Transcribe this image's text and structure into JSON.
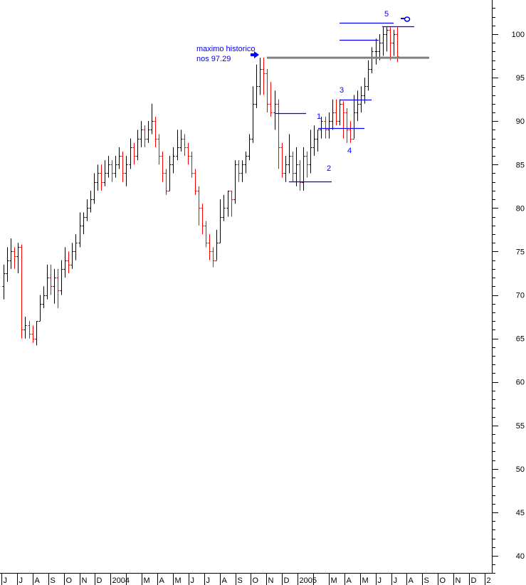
{
  "chart_data": {
    "type": "ohlc-bar",
    "title": "",
    "xlabel": "",
    "ylabel": "",
    "ylim": [
      38,
      104
    ],
    "grid": false,
    "colors": {
      "up": "#000000",
      "down": "#ff0000",
      "annotation": "#0000ff",
      "reference": "#808080",
      "axis": "#000000"
    },
    "y_ticks": [
      100,
      95,
      90,
      85,
      80,
      75,
      70,
      65,
      60,
      55,
      50,
      45,
      40
    ],
    "y_tick_labels": [
      "100",
      "95",
      "90",
      "85",
      "80",
      "75",
      "70",
      "65",
      "60",
      "55",
      "50",
      "45",
      "40"
    ],
    "x_tick_labels": [
      "J",
      "J",
      "A",
      "S",
      "O",
      "N",
      "D",
      "2004",
      "",
      "M",
      "A",
      "M",
      "J",
      "J",
      "A",
      "S",
      "O",
      "N",
      "D",
      "2005",
      "",
      "M",
      "A",
      "M",
      "J",
      "J",
      "A",
      "S",
      "O",
      "N",
      "D",
      "2"
    ],
    "bars_format": [
      "open",
      "high",
      "low",
      "close"
    ],
    "bars": [
      [
        71,
        73.5,
        69.5,
        72.5
      ],
      [
        72.5,
        75.5,
        71.5,
        74
      ],
      [
        74,
        76.5,
        73,
        75
      ],
      [
        75,
        75.5,
        73,
        74.5
      ],
      [
        74.5,
        76,
        72.5,
        75.5
      ],
      [
        75.5,
        75.8,
        65,
        66
      ],
      [
        66,
        67.5,
        65,
        66.5
      ],
      [
        66.5,
        67,
        65,
        65.5
      ],
      [
        65.5,
        66.5,
        64.5,
        65
      ],
      [
        65,
        67,
        64.2,
        67
      ],
      [
        67,
        70,
        67,
        69
      ],
      [
        69,
        71,
        68.5,
        70
      ],
      [
        70,
        73.5,
        69.5,
        72
      ],
      [
        72,
        73.5,
        70,
        71
      ],
      [
        71,
        73,
        69,
        72
      ],
      [
        72,
        73,
        68.5,
        70.5
      ],
      [
        70.5,
        74,
        70,
        73
      ],
      [
        73,
        75.5,
        72,
        74
      ],
      [
        74,
        75,
        72.5,
        73.5
      ],
      [
        73.5,
        76,
        73,
        75
      ],
      [
        75,
        77,
        74,
        76
      ],
      [
        76,
        79.5,
        75.5,
        78
      ],
      [
        78,
        79.5,
        77,
        79
      ],
      [
        79,
        81,
        78.5,
        80
      ],
      [
        80,
        82,
        79.5,
        81
      ],
      [
        81,
        84,
        80.5,
        83
      ],
      [
        83,
        85,
        82,
        84
      ],
      [
        84,
        85,
        82,
        83
      ],
      [
        83,
        85.5,
        82.5,
        84
      ],
      [
        84,
        86,
        83.5,
        85
      ],
      [
        85,
        85.5,
        83,
        84
      ],
      [
        84,
        86,
        83.5,
        85
      ],
      [
        85,
        87,
        84.5,
        86
      ],
      [
        86,
        86.5,
        83,
        84
      ],
      [
        84,
        86,
        82.5,
        85
      ],
      [
        85,
        88,
        84.5,
        87
      ],
      [
        87,
        87.5,
        85,
        86
      ],
      [
        86,
        89,
        85.5,
        88
      ],
      [
        88,
        90,
        87,
        89
      ],
      [
        89,
        89.5,
        87,
        88
      ],
      [
        88,
        90,
        87.5,
        89
      ],
      [
        89,
        92,
        88.5,
        90
      ],
      [
        90,
        90.5,
        87,
        88
      ],
      [
        88,
        88.5,
        85,
        86
      ],
      [
        86,
        86.5,
        83,
        84
      ],
      [
        84,
        84.5,
        81.5,
        82
      ],
      [
        82,
        86,
        82,
        85
      ],
      [
        85,
        87,
        84,
        86
      ],
      [
        86,
        89,
        85.5,
        87
      ],
      [
        87,
        89,
        86.5,
        88
      ],
      [
        88,
        88.5,
        86,
        87
      ],
      [
        87,
        87.5,
        85,
        86
      ],
      [
        86,
        86.5,
        83.5,
        84
      ],
      [
        84,
        84.5,
        81.5,
        82
      ],
      [
        82,
        82.5,
        78,
        80
      ],
      [
        80,
        80.5,
        77,
        78
      ],
      [
        78,
        78.5,
        75.5,
        76
      ],
      [
        76,
        77,
        74,
        75
      ],
      [
        75,
        75.5,
        73.2,
        74
      ],
      [
        74,
        77.5,
        74,
        76
      ],
      [
        76,
        81,
        76,
        79
      ],
      [
        79,
        81.5,
        78.5,
        80
      ],
      [
        80,
        82,
        79,
        82
      ],
      [
        82,
        82,
        79,
        81
      ],
      [
        81,
        85.5,
        80.5,
        85
      ],
      [
        85,
        85.5,
        83,
        84
      ],
      [
        84,
        85.5,
        83,
        85
      ],
      [
        85,
        86.5,
        84,
        86
      ],
      [
        86,
        88.5,
        85.5,
        88
      ],
      [
        88,
        94,
        87.5,
        92
      ],
      [
        92,
        96.5,
        91.5,
        94
      ],
      [
        94,
        97.3,
        93,
        96
      ],
      [
        96,
        97.3,
        93,
        95.5
      ],
      [
        95.5,
        96,
        91,
        92
      ],
      [
        92,
        94.5,
        90.5,
        91
      ],
      [
        91,
        93.5,
        89,
        92
      ],
      [
        92,
        92.5,
        84.5,
        87
      ],
      [
        87,
        87.5,
        83.5,
        84
      ],
      [
        84,
        86,
        83,
        85
      ],
      [
        85,
        88.5,
        84,
        86
      ],
      [
        86,
        86.5,
        83,
        84
      ],
      [
        84,
        87,
        82.5,
        85
      ],
      [
        85,
        85.5,
        82,
        83
      ],
      [
        83,
        87,
        82,
        86
      ],
      [
        86,
        86.5,
        83.5,
        85
      ],
      [
        85,
        89,
        84,
        87
      ],
      [
        87,
        89.5,
        86,
        88
      ],
      [
        88,
        89,
        86.5,
        89
      ],
      [
        89,
        90.5,
        88,
        90
      ],
      [
        90,
        90.5,
        88,
        89
      ],
      [
        89,
        91,
        88,
        90
      ],
      [
        90,
        92.5,
        89,
        91
      ],
      [
        91,
        92.5,
        89.5,
        90
      ],
      [
        90,
        92.5,
        89.5,
        92
      ],
      [
        92,
        92.3,
        88,
        91
      ],
      [
        91,
        91.5,
        87.5,
        89
      ],
      [
        89,
        90,
        87.5,
        88
      ],
      [
        88,
        93,
        88,
        91
      ],
      [
        91,
        93.5,
        90,
        92
      ],
      [
        92,
        94,
        91,
        93
      ],
      [
        93,
        95,
        92,
        94
      ],
      [
        94,
        97,
        93.5,
        96
      ],
      [
        96,
        98.5,
        95.5,
        98
      ],
      [
        98,
        99.5,
        96.5,
        98
      ],
      [
        98,
        100,
        97,
        99
      ],
      [
        99,
        100.8,
        97.5,
        100
      ],
      [
        100,
        100.8,
        98,
        100.5
      ],
      [
        100.5,
        100.8,
        97,
        99
      ],
      [
        99,
        100.5,
        97.5,
        100
      ],
      [
        100,
        100.8,
        96.8,
        97.5
      ]
    ],
    "reference_level": {
      "value": 97.29,
      "label_line1": "maximo historico",
      "label_line2": "nos 97.29"
    },
    "annotation_levels": [
      90.9,
      83.05,
      89.2,
      92.5,
      99.35,
      101.3,
      100.9
    ],
    "wave_labels": [
      "1",
      "2",
      "3",
      "4",
      "5"
    ],
    "icons": [
      "arrow-right-icon",
      "pointing-hand-icon"
    ]
  }
}
